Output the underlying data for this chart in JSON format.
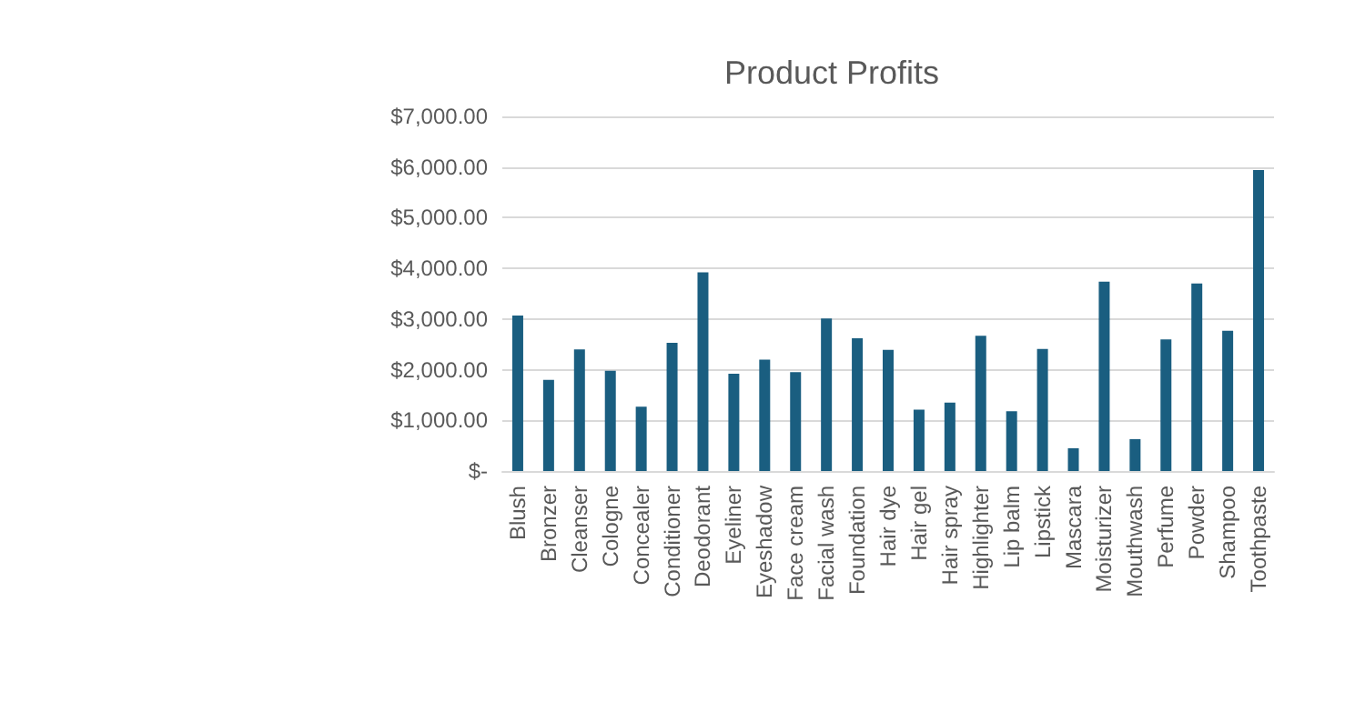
{
  "chart_data": {
    "type": "bar",
    "title": "Product Profits",
    "categories": [
      "Blush",
      "Bronzer",
      "Cleanser",
      "Cologne",
      "Concealer",
      "Conditioner",
      "Deodorant",
      "Eyeliner",
      "Eyeshadow",
      "Face cream",
      "Facial wash",
      "Foundation",
      "Hair dye",
      "Hair gel",
      "Hair spray",
      "Highlighter",
      "Lip balm",
      "Lipstick",
      "Mascara",
      "Moisturizer",
      "Mouthwash",
      "Perfume",
      "Powder",
      "Shampoo",
      "Toothpaste"
    ],
    "values": [
      3070,
      1800,
      2400,
      1980,
      1270,
      2530,
      3920,
      1920,
      2200,
      1950,
      3010,
      2620,
      2390,
      1210,
      1350,
      2670,
      1180,
      2410,
      450,
      3740,
      630,
      2600,
      3700,
      2770,
      5940
    ],
    "color": "#1a5e80",
    "ylim": [
      0,
      7000
    ],
    "yticks": [
      {
        "value": 0,
        "label": "$-"
      },
      {
        "value": 1000,
        "label": "$1,000.00"
      },
      {
        "value": 2000,
        "label": "$2,000.00"
      },
      {
        "value": 3000,
        "label": "$3,000.00"
      },
      {
        "value": 4000,
        "label": "$4,000.00"
      },
      {
        "value": 5000,
        "label": "$5,000.00"
      },
      {
        "value": 6000,
        "label": "$6,000.00"
      },
      {
        "value": 7000,
        "label": "$7,000.00"
      }
    ],
    "grid": "y"
  }
}
